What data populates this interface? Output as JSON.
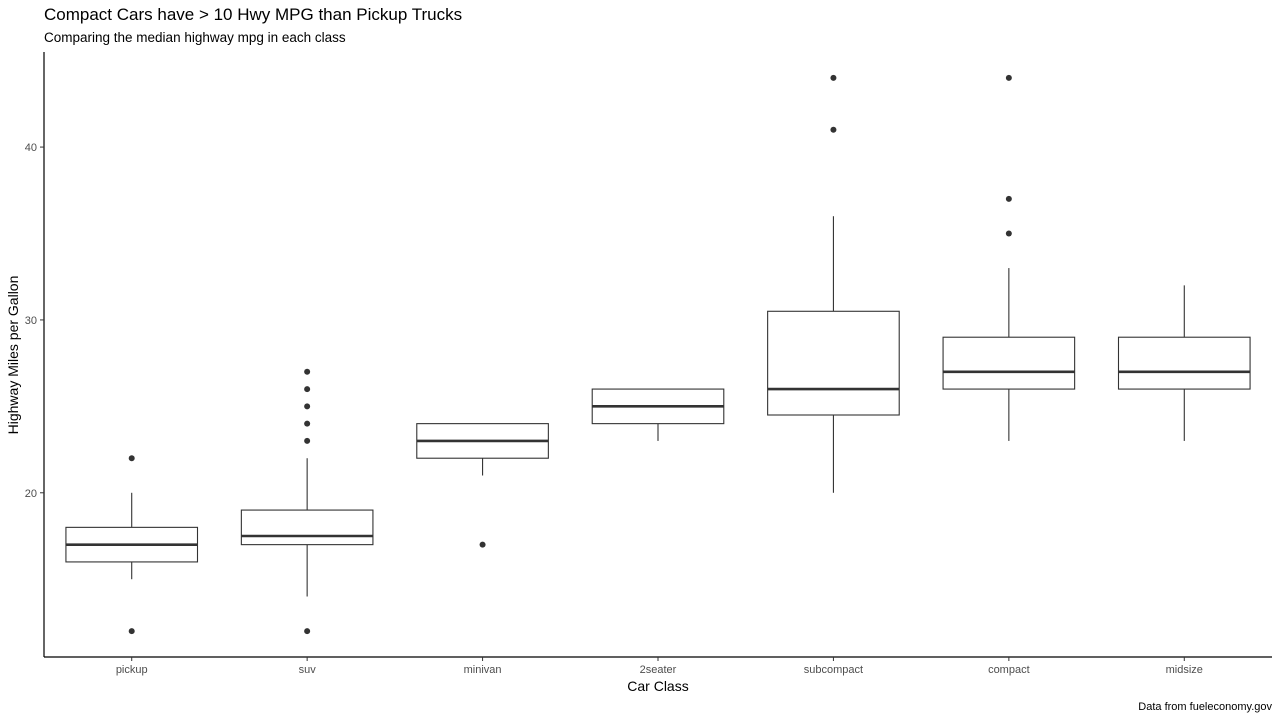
{
  "chart_data": {
    "type": "boxplot",
    "title": "Compact Cars have > 10 Hwy MPG than Pickup Trucks",
    "subtitle": "Comparing the median highway mpg in each class",
    "xlabel": "Car Class",
    "ylabel": "Highway Miles per Gallon",
    "caption": "Data from fueleconomy.gov",
    "ylim": [
      10.5,
      45.5
    ],
    "yticks": [
      20,
      30,
      40
    ],
    "grid": false,
    "categories": [
      "pickup",
      "suv",
      "minivan",
      "2seater",
      "subcompact",
      "compact",
      "midsize"
    ],
    "boxes": [
      {
        "category": "pickup",
        "min": 15,
        "q1": 16,
        "median": 17,
        "q3": 18,
        "max": 20,
        "outliers": [
          22,
          12
        ]
      },
      {
        "category": "suv",
        "min": 14,
        "q1": 17,
        "median": 17.5,
        "q3": 19,
        "max": 22,
        "outliers": [
          27,
          26,
          25,
          24,
          23,
          12
        ]
      },
      {
        "category": "minivan",
        "min": 21,
        "q1": 22,
        "median": 23,
        "q3": 24,
        "max": 24,
        "outliers": [
          17
        ]
      },
      {
        "category": "2seater",
        "min": 23,
        "q1": 24,
        "median": 25,
        "q3": 26,
        "max": 26,
        "outliers": []
      },
      {
        "category": "subcompact",
        "min": 20,
        "q1": 24.5,
        "median": 26,
        "q3": 30.5,
        "max": 36,
        "outliers": [
          44,
          41
        ]
      },
      {
        "category": "compact",
        "min": 23,
        "q1": 26,
        "median": 27,
        "q3": 29,
        "max": 33,
        "outliers": [
          44,
          37,
          35
        ]
      },
      {
        "category": "midsize",
        "min": 23,
        "q1": 26,
        "median": 27,
        "q3": 29,
        "max": 32,
        "outliers": []
      }
    ]
  }
}
